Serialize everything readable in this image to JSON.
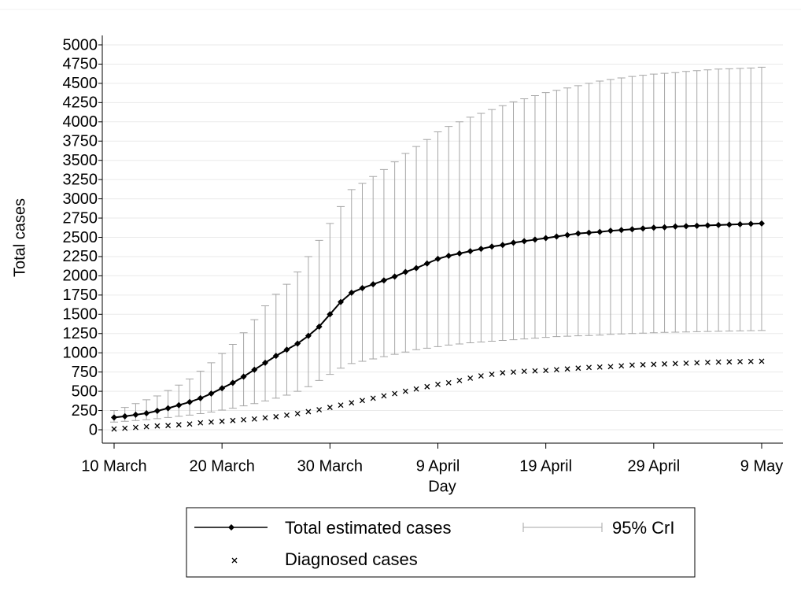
{
  "chart_data": {
    "type": "errorbar_line",
    "xlabel": "Day",
    "ylabel": "Total cases",
    "categories": [
      "10 March",
      null,
      null,
      null,
      null,
      null,
      null,
      null,
      null,
      null,
      "20 March",
      null,
      null,
      null,
      null,
      null,
      null,
      null,
      null,
      null,
      "30 March",
      null,
      null,
      null,
      null,
      null,
      null,
      null,
      null,
      null,
      "9 April",
      null,
      null,
      null,
      null,
      null,
      null,
      null,
      null,
      null,
      "19 April",
      null,
      null,
      null,
      null,
      null,
      null,
      null,
      null,
      null,
      "29 April",
      null,
      null,
      null,
      null,
      null,
      null,
      null,
      null,
      null,
      "9 May"
    ],
    "series": [
      {
        "name": "Total estimated cases",
        "color": "#000000",
        "values": [
          160,
          175,
          195,
          215,
          245,
          280,
          320,
          360,
          410,
          470,
          540,
          610,
          690,
          780,
          870,
          960,
          1040,
          1120,
          1220,
          1340,
          1500,
          1660,
          1780,
          1840,
          1890,
          1940,
          1990,
          2050,
          2100,
          2160,
          2220,
          2260,
          2290,
          2320,
          2350,
          2380,
          2400,
          2430,
          2450,
          2470,
          2490,
          2510,
          2530,
          2550,
          2560,
          2570,
          2585,
          2595,
          2605,
          2615,
          2625,
          2630,
          2640,
          2645,
          2650,
          2655,
          2660,
          2665,
          2670,
          2675,
          2680
        ]
      },
      {
        "name": "95% CrI",
        "color": "#a6a6a6",
        "lower": [
          100,
          110,
          120,
          130,
          145,
          160,
          175,
          190,
          210,
          230,
          255,
          280,
          310,
          340,
          375,
          410,
          450,
          500,
          560,
          640,
          720,
          800,
          860,
          890,
          920,
          950,
          980,
          1010,
          1040,
          1060,
          1080,
          1100,
          1115,
          1130,
          1140,
          1150,
          1160,
          1170,
          1180,
          1190,
          1200,
          1210,
          1215,
          1220,
          1225,
          1230,
          1240,
          1245,
          1250,
          1255,
          1260,
          1265,
          1268,
          1271,
          1274,
          1277,
          1280,
          1282,
          1284,
          1287,
          1290
        ],
        "upper": [
          250,
          290,
          340,
          390,
          440,
          510,
          580,
          660,
          760,
          870,
          990,
          1110,
          1260,
          1430,
          1610,
          1760,
          1890,
          2050,
          2250,
          2460,
          2680,
          2900,
          3120,
          3200,
          3290,
          3380,
          3480,
          3590,
          3680,
          3770,
          3870,
          3940,
          4000,
          4060,
          4110,
          4160,
          4210,
          4260,
          4300,
          4340,
          4380,
          4410,
          4440,
          4470,
          4500,
          4530,
          4550,
          4570,
          4590,
          4605,
          4620,
          4630,
          4640,
          4655,
          4665,
          4675,
          4685,
          4690,
          4695,
          4700,
          4710
        ]
      },
      {
        "name": "Diagnosed cases",
        "color": "#000000",
        "values": [
          10,
          20,
          30,
          40,
          50,
          55,
          65,
          75,
          90,
          100,
          110,
          120,
          130,
          140,
          155,
          170,
          190,
          210,
          235,
          260,
          290,
          320,
          350,
          380,
          410,
          440,
          470,
          500,
          530,
          560,
          590,
          610,
          640,
          670,
          700,
          720,
          740,
          750,
          760,
          765,
          770,
          780,
          790,
          800,
          810,
          815,
          820,
          830,
          840,
          845,
          850,
          855,
          860,
          865,
          870,
          875,
          880,
          882,
          885,
          888,
          890
        ]
      }
    ],
    "ylim": [
      0,
      5000
    ],
    "yticks": [
      0,
      250,
      500,
      750,
      1000,
      1250,
      1500,
      1750,
      2000,
      2250,
      2500,
      2750,
      3000,
      3250,
      3500,
      3750,
      4000,
      4250,
      4500,
      4750,
      5000
    ],
    "grid": true
  }
}
